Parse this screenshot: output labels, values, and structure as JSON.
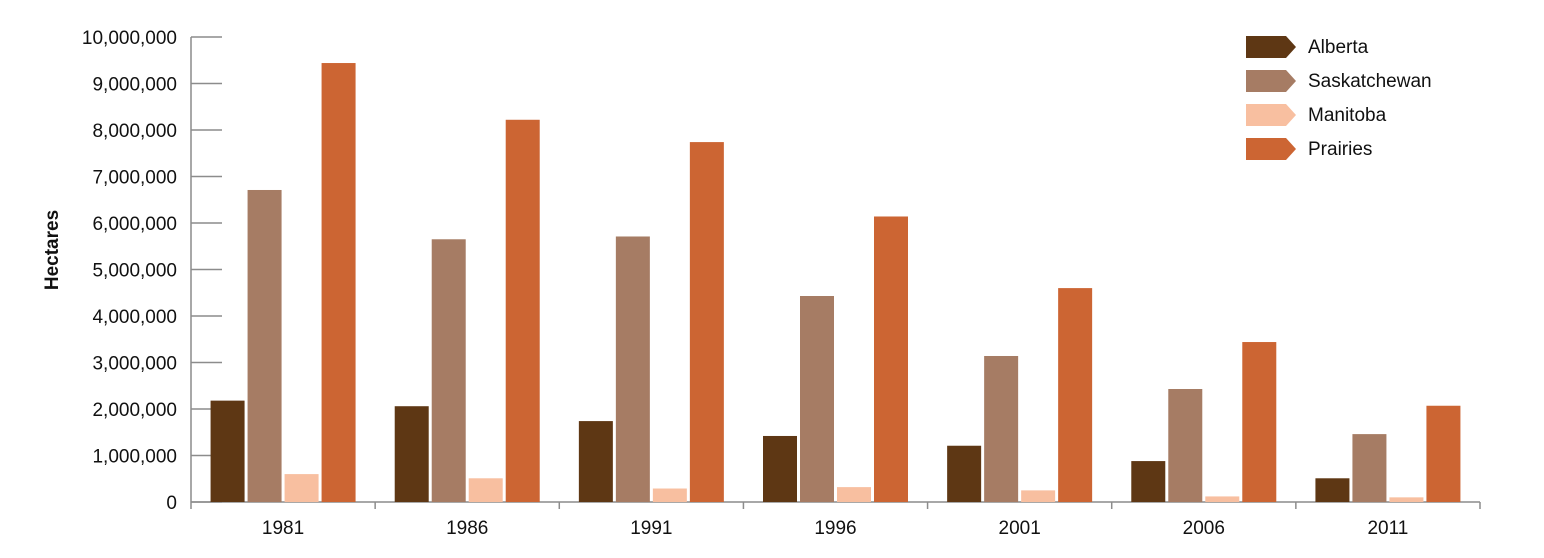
{
  "chart_data": {
    "type": "bar",
    "title": "",
    "xlabel": "",
    "ylabel": "Hectares",
    "ylim": [
      0,
      10000000
    ],
    "yticks": [
      0,
      1000000,
      2000000,
      3000000,
      4000000,
      5000000,
      6000000,
      7000000,
      8000000,
      9000000,
      10000000
    ],
    "ytick_labels": [
      "0",
      "1,000,000",
      "2,000,000",
      "3,000,000",
      "4,000,000",
      "5,000,000",
      "6,000,000",
      "7,000,000",
      "8,000,000",
      "9,000,000",
      "10,000,000"
    ],
    "categories": [
      "1981",
      "1986",
      "1991",
      "1996",
      "2001",
      "2006",
      "2011"
    ],
    "series": [
      {
        "name": "Alberta",
        "color": "#5e3714",
        "values": [
          2180000,
          2060000,
          1740000,
          1420000,
          1210000,
          880000,
          510000
        ]
      },
      {
        "name": "Saskatchewan",
        "color": "#a67c64",
        "values": [
          6710000,
          5650000,
          5710000,
          4430000,
          3140000,
          2430000,
          1460000
        ]
      },
      {
        "name": "Manitoba",
        "color": "#f8bfa0",
        "values": [
          600000,
          510000,
          290000,
          320000,
          250000,
          120000,
          100000
        ]
      },
      {
        "name": "Prairies",
        "color": "#cc6533",
        "values": [
          9440000,
          8220000,
          7740000,
          6140000,
          4600000,
          3440000,
          2070000
        ]
      }
    ],
    "legend_position": "top-right",
    "grid": false
  }
}
